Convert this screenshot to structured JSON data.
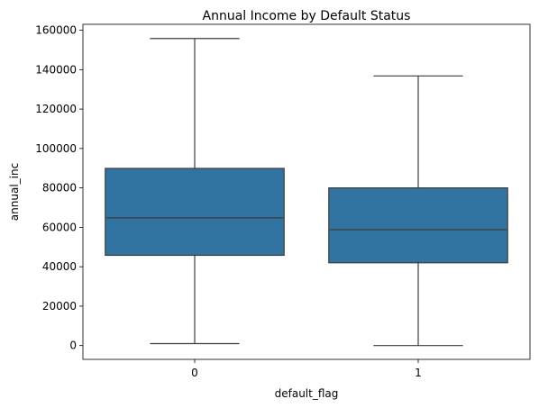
{
  "chart_data": {
    "type": "box",
    "title": "Annual Income by Default Status",
    "xlabel": "default_flag",
    "ylabel": "annual_inc",
    "categories": [
      "0",
      "1"
    ],
    "ylim": [
      -7000,
      163000
    ],
    "yticks": [
      0,
      20000,
      40000,
      60000,
      80000,
      100000,
      120000,
      140000,
      160000
    ],
    "ytick_labels": [
      "0",
      "20000",
      "40000",
      "60000",
      "80000",
      "100000",
      "120000",
      "140000",
      "160000"
    ],
    "boxes": [
      {
        "category": "0",
        "whisker_low": 1000,
        "q1": 45800,
        "median": 64800,
        "q3": 89900,
        "whisker_high": 155800
      },
      {
        "category": "1",
        "whisker_low": 0,
        "q1": 42000,
        "median": 58800,
        "q3": 80000,
        "whisker_high": 136800
      }
    ],
    "box_color": "#3274a1",
    "line_color": "#3d3d3d",
    "grid": false
  }
}
